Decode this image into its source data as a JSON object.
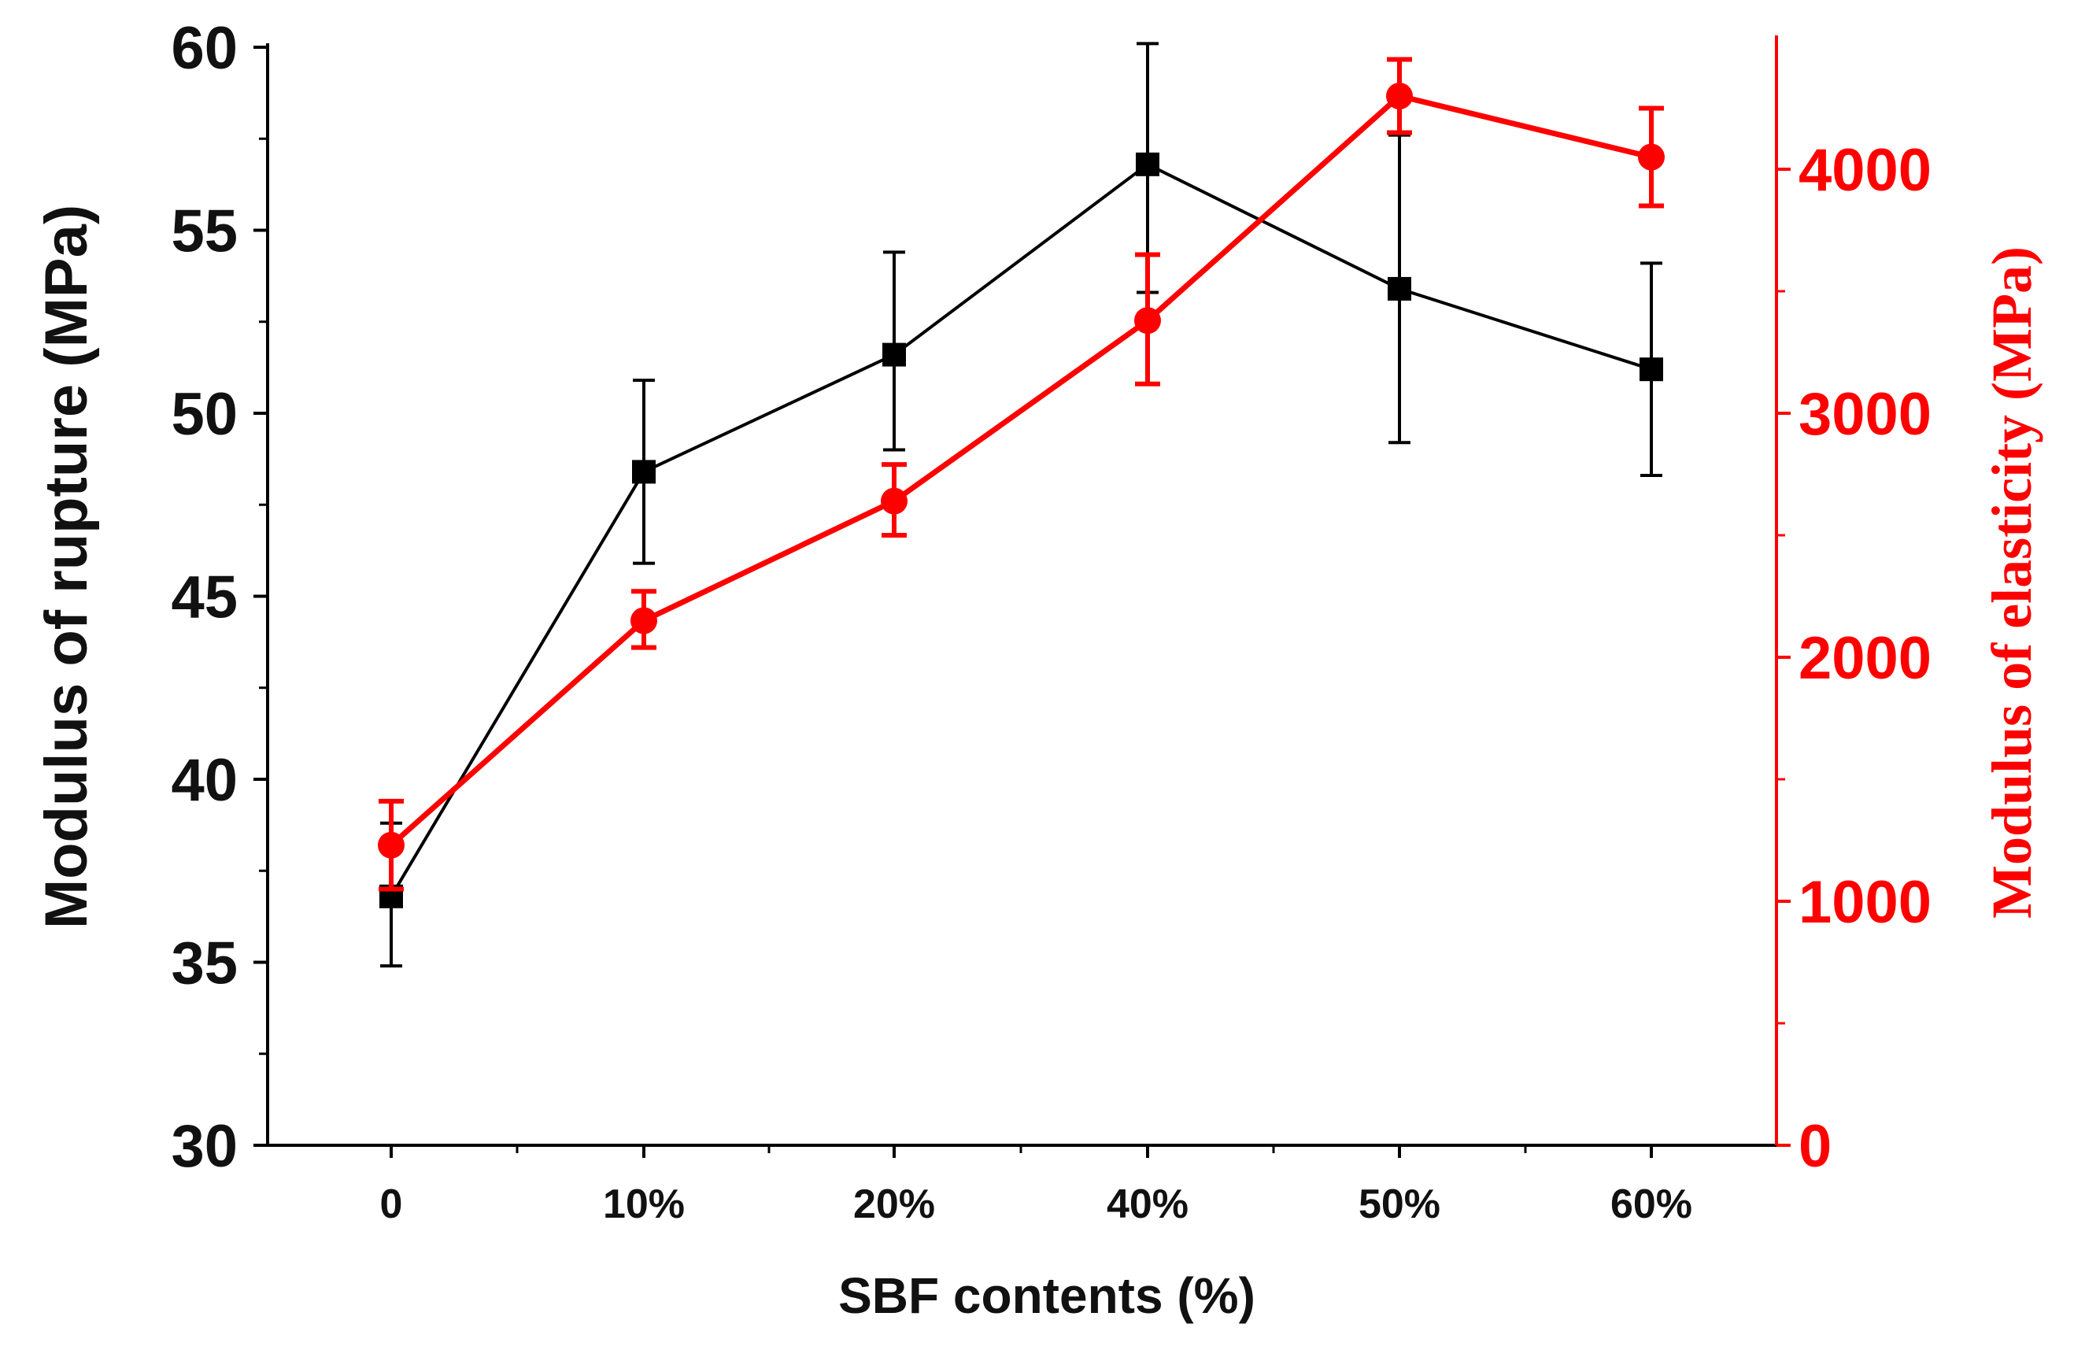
{
  "chart_data": {
    "type": "line",
    "categories": [
      "0",
      "10%",
      "20%",
      "40%",
      "50%",
      "60%"
    ],
    "xlabel": "SBF contents (%)",
    "ylabel_left": "Modulus of rupture (MPa)",
    "ylabel_right": "Modulus of elasticity (MPa)",
    "ylim_left": [
      30,
      60
    ],
    "ylim_right": [
      0,
      4500
    ],
    "yticks_left": [
      "30",
      "35",
      "40",
      "45",
      "50",
      "55",
      "60"
    ],
    "yticks_right": [
      "0",
      "1000",
      "2000",
      "3000",
      "4000"
    ],
    "series": [
      {
        "name": "Modulus of rupture",
        "axis": "left",
        "color": "#000000",
        "marker": "square",
        "values": [
          36.8,
          48.4,
          51.6,
          56.8,
          53.4,
          51.2
        ],
        "err_low": [
          1.9,
          2.5,
          2.6,
          3.5,
          4.2,
          2.9
        ],
        "err_high": [
          2.0,
          2.5,
          2.8,
          3.3,
          4.2,
          2.9
        ]
      },
      {
        "name": "Modulus of elasticity",
        "axis": "right",
        "color": "#ff0000",
        "marker": "circle",
        "values": [
          1230,
          2150,
          2640,
          3380,
          4300,
          4050
        ],
        "err_low": [
          180,
          110,
          140,
          260,
          150,
          200
        ],
        "err_high": [
          180,
          120,
          150,
          270,
          150,
          200
        ]
      }
    ]
  }
}
